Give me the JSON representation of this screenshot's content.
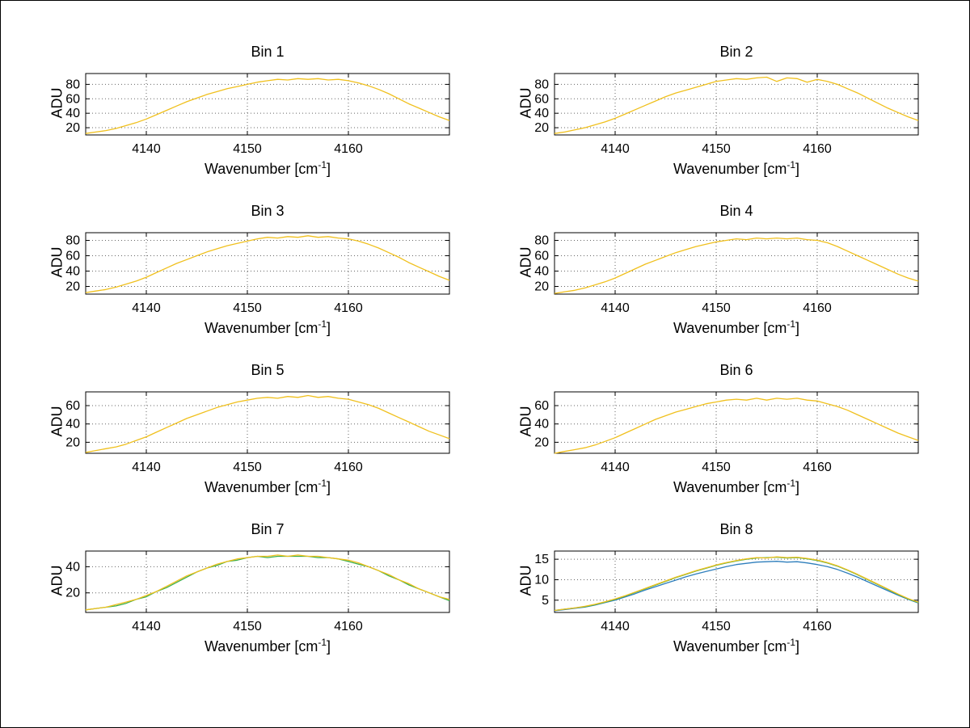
{
  "figure": {
    "background": "#ffffff",
    "border_color": "#000000",
    "grid_color": "#666666",
    "axis_color": "#000000"
  },
  "labels": {
    "xlabel_prefix": "Wavenumber [cm",
    "xlabel_sup": "-1",
    "xlabel_suffix": "]",
    "ylabel": "ADU"
  },
  "shared_x": [
    4134,
    4135,
    4136,
    4137,
    4138,
    4139,
    4140,
    4141,
    4142,
    4143,
    4144,
    4145,
    4146,
    4147,
    4148,
    4149,
    4150,
    4151,
    4152,
    4153,
    4154,
    4155,
    4156,
    4157,
    4158,
    4159,
    4160,
    4161,
    4162,
    4163,
    4164,
    4165,
    4166,
    4167,
    4168,
    4169,
    4170
  ],
  "chart_data": [
    {
      "type": "line",
      "title": "Bin 1",
      "xlabel": "Wavenumber [cm^-1]",
      "ylabel": "ADU",
      "xlim": [
        4134,
        4170
      ],
      "ylim": [
        10,
        95
      ],
      "xticks": [
        4140,
        4150,
        4160
      ],
      "yticks": [
        20,
        40,
        60,
        80
      ],
      "grid": true,
      "series": [
        {
          "name": "yellow",
          "color": "#f0c01d",
          "values": [
            12,
            14,
            16,
            19,
            23,
            27,
            32,
            38,
            44,
            50,
            56,
            61,
            66,
            70,
            74,
            77,
            80,
            83,
            85,
            87,
            86,
            88,
            87,
            88,
            86,
            87,
            85,
            82,
            78,
            73,
            67,
            60,
            53,
            47,
            41,
            35,
            30
          ]
        }
      ]
    },
    {
      "type": "line",
      "title": "Bin 2",
      "xlabel": "Wavenumber [cm^-1]",
      "ylabel": "ADU",
      "xlim": [
        4134,
        4170
      ],
      "ylim": [
        10,
        95
      ],
      "xticks": [
        4140,
        4150,
        4160
      ],
      "yticks": [
        20,
        40,
        60,
        80
      ],
      "grid": true,
      "series": [
        {
          "name": "yellow",
          "color": "#f0c01d",
          "values": [
            12,
            14,
            17,
            20,
            24,
            28,
            33,
            39,
            45,
            51,
            57,
            63,
            68,
            72,
            76,
            80,
            84,
            86,
            88,
            87,
            89,
            90,
            84,
            89,
            88,
            83,
            87,
            84,
            80,
            74,
            68,
            61,
            54,
            47,
            41,
            35,
            30
          ]
        }
      ]
    },
    {
      "type": "line",
      "title": "Bin 3",
      "xlabel": "Wavenumber [cm^-1]",
      "ylabel": "ADU",
      "xlim": [
        4134,
        4170
      ],
      "ylim": [
        10,
        90
      ],
      "xticks": [
        4140,
        4150,
        4160
      ],
      "yticks": [
        20,
        40,
        60,
        80
      ],
      "grid": true,
      "series": [
        {
          "name": "yellow",
          "color": "#f0c01d",
          "values": [
            12,
            14,
            16,
            19,
            23,
            27,
            32,
            38,
            44,
            50,
            55,
            60,
            65,
            69,
            73,
            76,
            79,
            82,
            84,
            83,
            85,
            84,
            86,
            84,
            85,
            83,
            82,
            79,
            75,
            70,
            64,
            58,
            51,
            45,
            39,
            33,
            28
          ]
        }
      ]
    },
    {
      "type": "line",
      "title": "Bin 4",
      "xlabel": "Wavenumber [cm^-1]",
      "ylabel": "ADU",
      "xlim": [
        4134,
        4170
      ],
      "ylim": [
        10,
        90
      ],
      "xticks": [
        4140,
        4150,
        4160
      ],
      "yticks": [
        20,
        40,
        60,
        80
      ],
      "grid": true,
      "series": [
        {
          "name": "yellow",
          "color": "#f0c01d",
          "values": [
            11,
            13,
            15,
            18,
            22,
            26,
            31,
            37,
            43,
            49,
            54,
            59,
            64,
            68,
            72,
            75,
            78,
            80,
            82,
            81,
            83,
            82,
            83,
            82,
            83,
            81,
            80,
            77,
            72,
            66,
            60,
            54,
            48,
            42,
            36,
            31,
            27
          ]
        }
      ]
    },
    {
      "type": "line",
      "title": "Bin 5",
      "xlabel": "Wavenumber [cm^-1]",
      "ylabel": "ADU",
      "xlim": [
        4134,
        4170
      ],
      "ylim": [
        8,
        75
      ],
      "xticks": [
        4140,
        4150,
        4160
      ],
      "yticks": [
        20,
        40,
        60
      ],
      "grid": true,
      "series": [
        {
          "name": "yellow",
          "color": "#f0c01d",
          "values": [
            9,
            11,
            13,
            15,
            18,
            22,
            26,
            31,
            36,
            41,
            46,
            50,
            54,
            58,
            61,
            64,
            66,
            68,
            69,
            68,
            70,
            69,
            71,
            69,
            70,
            68,
            67,
            64,
            61,
            57,
            52,
            47,
            42,
            37,
            32,
            28,
            24
          ]
        }
      ]
    },
    {
      "type": "line",
      "title": "Bin 6",
      "xlabel": "Wavenumber [cm^-1]",
      "ylabel": "ADU",
      "xlim": [
        4134,
        4170
      ],
      "ylim": [
        8,
        75
      ],
      "xticks": [
        4140,
        4150,
        4160
      ],
      "yticks": [
        20,
        40,
        60
      ],
      "grid": true,
      "series": [
        {
          "name": "yellow",
          "color": "#f0c01d",
          "values": [
            8,
            10,
            12,
            14,
            17,
            21,
            25,
            30,
            35,
            40,
            45,
            49,
            53,
            56,
            59,
            62,
            64,
            66,
            67,
            66,
            68,
            66,
            68,
            67,
            68,
            66,
            65,
            62,
            59,
            55,
            50,
            45,
            40,
            35,
            30,
            26,
            22
          ]
        }
      ]
    },
    {
      "type": "line",
      "title": "Bin 7",
      "xlabel": "Wavenumber [cm^-1]",
      "ylabel": "ADU",
      "xlim": [
        4134,
        4170
      ],
      "ylim": [
        5,
        52
      ],
      "xticks": [
        4140,
        4150,
        4160
      ],
      "yticks": [
        20,
        40
      ],
      "grid": true,
      "series": [
        {
          "name": "green",
          "color": "#3caf4a",
          "values": [
            7,
            8,
            9,
            10,
            12,
            15,
            17,
            21,
            24,
            28,
            32,
            36,
            39,
            41,
            44,
            45,
            47,
            48,
            47,
            48,
            48,
            48,
            48,
            47,
            47,
            46,
            44,
            42,
            40,
            37,
            33,
            30,
            26,
            23,
            20,
            17,
            14
          ]
        },
        {
          "name": "yellow",
          "color": "#f0c01d",
          "values": [
            7,
            8,
            9,
            11,
            13,
            15,
            18,
            21,
            25,
            29,
            33,
            36,
            39,
            42,
            44,
            46,
            47,
            48,
            48,
            49,
            48,
            49,
            48,
            48,
            47,
            46,
            45,
            43,
            40,
            37,
            34,
            30,
            27,
            23,
            20,
            17,
            15
          ]
        }
      ]
    },
    {
      "type": "line",
      "title": "Bin 8",
      "xlabel": "Wavenumber [cm^-1]",
      "ylabel": "ADU",
      "xlim": [
        4134,
        4170
      ],
      "ylim": [
        2,
        17
      ],
      "xticks": [
        4140,
        4150,
        4160
      ],
      "yticks": [
        5,
        10,
        15
      ],
      "grid": true,
      "series": [
        {
          "name": "blue",
          "color": "#2e7ebc",
          "values": [
            2.4,
            2.7,
            3,
            3.3,
            3.8,
            4.4,
            5,
            5.8,
            6.6,
            7.5,
            8.3,
            9.1,
            9.9,
            10.7,
            11.4,
            12,
            12.6,
            13.2,
            13.7,
            14,
            14.3,
            14.4,
            14.5,
            14.3,
            14.4,
            14.1,
            13.7,
            13.2,
            12.5,
            11.6,
            10.6,
            9.5,
            8.4,
            7.3,
            6.2,
            5.2,
            4.3
          ]
        },
        {
          "name": "green",
          "color": "#3caf4a",
          "values": [
            2.5,
            2.8,
            3.1,
            3.4,
            3.9,
            4.5,
            5.2,
            6,
            6.9,
            7.8,
            8.7,
            9.6,
            10.5,
            11.3,
            12.1,
            12.8,
            13.5,
            14.1,
            14.6,
            15,
            15.3,
            15.4,
            15.5,
            15.3,
            15.4,
            15.1,
            14.7,
            14.1,
            13.3,
            12.3,
            11.2,
            10,
            8.8,
            7.6,
            6.4,
            5.3,
            4.4
          ]
        },
        {
          "name": "yellow",
          "color": "#f0c01d",
          "values": [
            2.5,
            2.8,
            3.1,
            3.5,
            4,
            4.6,
            5.3,
            6.1,
            7,
            7.9,
            8.8,
            9.7,
            10.6,
            11.4,
            12.2,
            12.9,
            13.6,
            14.2,
            14.7,
            15.1,
            15.4,
            15.3,
            15.6,
            15.4,
            15.5,
            15.2,
            14.8,
            14.2,
            13.4,
            12.4,
            11.3,
            10.1,
            8.9,
            7.7,
            6.5,
            5.4,
            4.5
          ]
        }
      ]
    }
  ]
}
